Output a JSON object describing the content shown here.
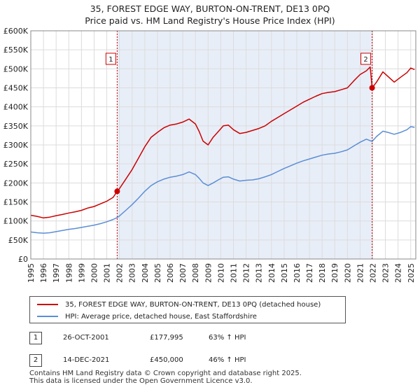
{
  "chart_data": {
    "type": "line",
    "title": "35, FOREST EDGE WAY, BURTON-ON-TRENT, DE13 0PQ",
    "subtitle": "Price paid vs. HM Land Registry's House Price Index (HPI)",
    "xlim": [
      1995,
      2025.4
    ],
    "ylim": [
      0,
      600000
    ],
    "x_ticks": [
      "1995",
      "1996",
      "1997",
      "1998",
      "1999",
      "2000",
      "2001",
      "2002",
      "2003",
      "2004",
      "2005",
      "2006",
      "2007",
      "2008",
      "2009",
      "2010",
      "2011",
      "2012",
      "2013",
      "2014",
      "2015",
      "2016",
      "2017",
      "2018",
      "2019",
      "2020",
      "2021",
      "2022",
      "2023",
      "2024",
      "2025"
    ],
    "y_ticks": [
      {
        "value": 0,
        "label": "£0"
      },
      {
        "value": 50000,
        "label": "£50K"
      },
      {
        "value": 100000,
        "label": "£100K"
      },
      {
        "value": 150000,
        "label": "£150K"
      },
      {
        "value": 200000,
        "label": "£200K"
      },
      {
        "value": 250000,
        "label": "£250K"
      },
      {
        "value": 300000,
        "label": "£300K"
      },
      {
        "value": 350000,
        "label": "£350K"
      },
      {
        "value": 400000,
        "label": "£400K"
      },
      {
        "value": 450000,
        "label": "£450K"
      },
      {
        "value": 500000,
        "label": "£500K"
      },
      {
        "value": 550000,
        "label": "£550K"
      },
      {
        "value": 600000,
        "label": "£600K"
      }
    ],
    "grid": true,
    "shaded_period": [
      2001.82,
      2021.95
    ],
    "series": [
      {
        "name": "35, FOREST EDGE WAY, BURTON-ON-TRENT, DE13 0PQ (detached house)",
        "color": "#cc0000",
        "points": [
          [
            1995.0,
            115000
          ],
          [
            1995.5,
            112000
          ],
          [
            1996.0,
            108000
          ],
          [
            1996.5,
            110000
          ],
          [
            1997.0,
            114000
          ],
          [
            1997.5,
            117000
          ],
          [
            1998.0,
            121000
          ],
          [
            1998.5,
            124000
          ],
          [
            1999.0,
            128000
          ],
          [
            1999.5,
            134000
          ],
          [
            2000.0,
            138000
          ],
          [
            2000.5,
            145000
          ],
          [
            2001.0,
            152000
          ],
          [
            2001.5,
            162000
          ],
          [
            2001.82,
            177995
          ],
          [
            2002.0,
            185000
          ],
          [
            2002.5,
            210000
          ],
          [
            2003.0,
            235000
          ],
          [
            2003.5,
            265000
          ],
          [
            2004.0,
            295000
          ],
          [
            2004.5,
            320000
          ],
          [
            2005.0,
            333000
          ],
          [
            2005.5,
            345000
          ],
          [
            2006.0,
            352000
          ],
          [
            2006.5,
            355000
          ],
          [
            2007.0,
            360000
          ],
          [
            2007.5,
            368000
          ],
          [
            2008.0,
            355000
          ],
          [
            2008.3,
            335000
          ],
          [
            2008.6,
            310000
          ],
          [
            2009.0,
            300000
          ],
          [
            2009.4,
            320000
          ],
          [
            2009.8,
            335000
          ],
          [
            2010.2,
            350000
          ],
          [
            2010.6,
            352000
          ],
          [
            2011.0,
            340000
          ],
          [
            2011.5,
            330000
          ],
          [
            2012.0,
            333000
          ],
          [
            2012.5,
            338000
          ],
          [
            2013.0,
            343000
          ],
          [
            2013.5,
            350000
          ],
          [
            2014.0,
            362000
          ],
          [
            2014.5,
            372000
          ],
          [
            2015.0,
            382000
          ],
          [
            2015.5,
            392000
          ],
          [
            2016.0,
            402000
          ],
          [
            2016.5,
            412000
          ],
          [
            2017.0,
            420000
          ],
          [
            2017.5,
            428000
          ],
          [
            2018.0,
            435000
          ],
          [
            2018.5,
            438000
          ],
          [
            2019.0,
            440000
          ],
          [
            2019.5,
            445000
          ],
          [
            2020.0,
            450000
          ],
          [
            2020.5,
            468000
          ],
          [
            2021.0,
            485000
          ],
          [
            2021.5,
            495000
          ],
          [
            2021.8,
            505000
          ],
          [
            2021.95,
            450000
          ],
          [
            2022.3,
            465000
          ],
          [
            2022.8,
            492000
          ],
          [
            2023.2,
            480000
          ],
          [
            2023.7,
            465000
          ],
          [
            2024.2,
            478000
          ],
          [
            2024.7,
            490000
          ],
          [
            2025.0,
            502000
          ],
          [
            2025.3,
            498000
          ]
        ]
      },
      {
        "name": "HPI: Average price, detached house, East Staffordshire",
        "color": "#5b8ed6",
        "points": [
          [
            1995.0,
            71000
          ],
          [
            1995.5,
            69000
          ],
          [
            1996.0,
            68000
          ],
          [
            1996.5,
            69000
          ],
          [
            1997.0,
            72000
          ],
          [
            1997.5,
            75000
          ],
          [
            1998.0,
            78000
          ],
          [
            1998.5,
            80000
          ],
          [
            1999.0,
            83000
          ],
          [
            1999.5,
            86000
          ],
          [
            2000.0,
            89000
          ],
          [
            2000.5,
            93000
          ],
          [
            2001.0,
            98000
          ],
          [
            2001.5,
            104000
          ],
          [
            2001.82,
            109000
          ],
          [
            2002.0,
            113000
          ],
          [
            2002.5,
            128000
          ],
          [
            2003.0,
            143000
          ],
          [
            2003.5,
            160000
          ],
          [
            2004.0,
            178000
          ],
          [
            2004.5,
            193000
          ],
          [
            2005.0,
            203000
          ],
          [
            2005.5,
            210000
          ],
          [
            2006.0,
            215000
          ],
          [
            2006.5,
            218000
          ],
          [
            2007.0,
            222000
          ],
          [
            2007.5,
            229000
          ],
          [
            2008.0,
            222000
          ],
          [
            2008.3,
            212000
          ],
          [
            2008.6,
            200000
          ],
          [
            2009.0,
            193000
          ],
          [
            2009.4,
            200000
          ],
          [
            2009.8,
            208000
          ],
          [
            2010.2,
            215000
          ],
          [
            2010.6,
            216000
          ],
          [
            2011.0,
            210000
          ],
          [
            2011.5,
            205000
          ],
          [
            2012.0,
            207000
          ],
          [
            2012.5,
            208000
          ],
          [
            2013.0,
            211000
          ],
          [
            2013.5,
            216000
          ],
          [
            2014.0,
            222000
          ],
          [
            2014.5,
            230000
          ],
          [
            2015.0,
            238000
          ],
          [
            2015.5,
            245000
          ],
          [
            2016.0,
            252000
          ],
          [
            2016.5,
            258000
          ],
          [
            2017.0,
            263000
          ],
          [
            2017.5,
            268000
          ],
          [
            2018.0,
            273000
          ],
          [
            2018.5,
            276000
          ],
          [
            2019.0,
            278000
          ],
          [
            2019.5,
            282000
          ],
          [
            2020.0,
            287000
          ],
          [
            2020.5,
            297000
          ],
          [
            2021.0,
            307000
          ],
          [
            2021.5,
            315000
          ],
          [
            2021.95,
            309000
          ],
          [
            2022.3,
            322000
          ],
          [
            2022.8,
            336000
          ],
          [
            2023.2,
            333000
          ],
          [
            2023.7,
            328000
          ],
          [
            2024.2,
            333000
          ],
          [
            2024.7,
            340000
          ],
          [
            2025.0,
            348000
          ],
          [
            2025.3,
            346000
          ]
        ]
      }
    ],
    "sales": [
      {
        "num": "1",
        "x": 2001.82,
        "price": 177995
      },
      {
        "num": "2",
        "x": 2021.95,
        "price": 450000
      }
    ]
  },
  "legend": [
    {
      "label": "35, FOREST EDGE WAY, BURTON-ON-TRENT, DE13 0PQ (detached house)",
      "color": "#cc0000"
    },
    {
      "label": "HPI: Average price, detached house, East Staffordshire",
      "color": "#5b8ed6"
    }
  ],
  "sales_table": [
    {
      "num": "1",
      "date": "26-OCT-2001",
      "price": "£177,995",
      "hpi": "63% ↑ HPI"
    },
    {
      "num": "2",
      "date": "14-DEC-2021",
      "price": "£450,000",
      "hpi": "46% ↑ HPI"
    }
  ],
  "footer": {
    "line1": "Contains HM Land Registry data © Crown copyright and database right 2025.",
    "line2": "This data is licensed under the Open Government Licence v3.0."
  }
}
